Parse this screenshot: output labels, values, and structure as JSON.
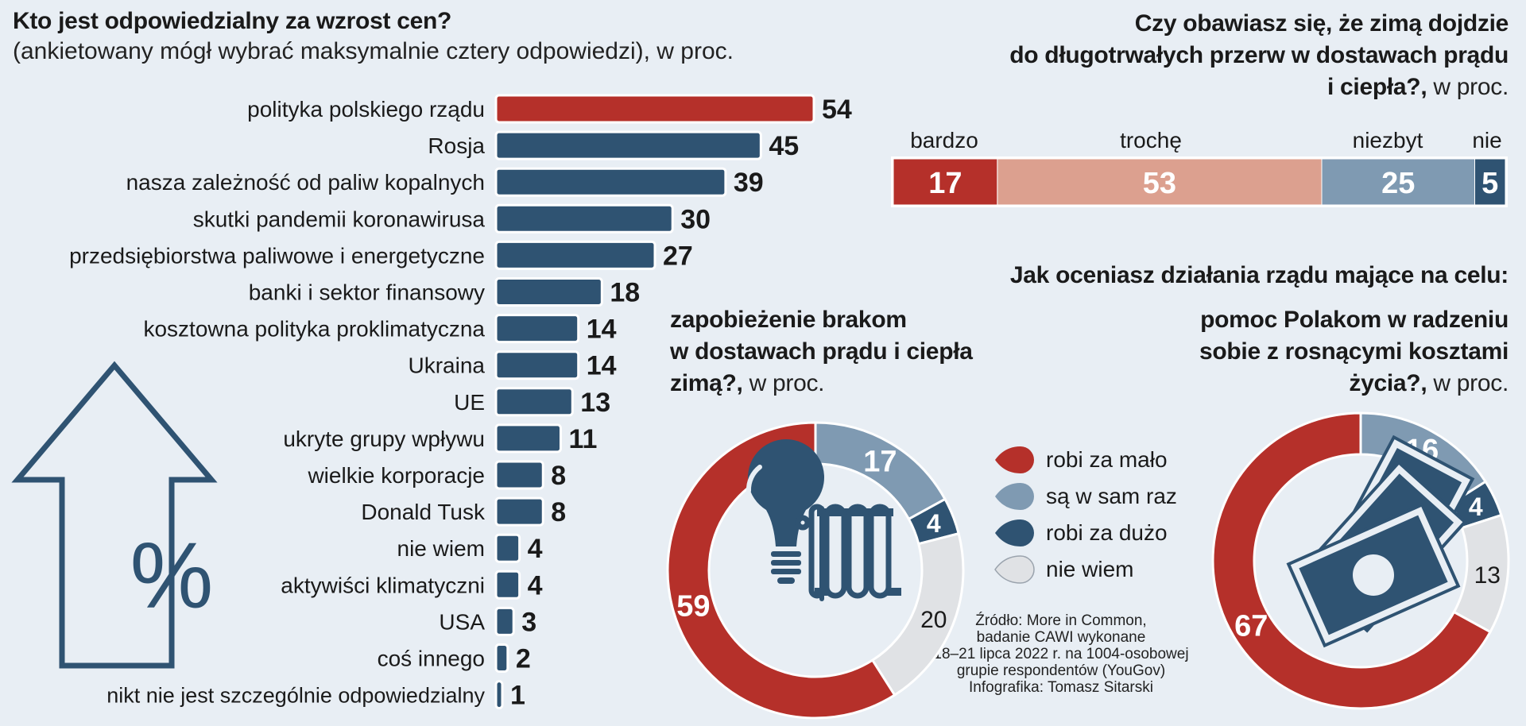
{
  "colors": {
    "red": "#b5302a",
    "navy": "#2f5372",
    "salmon": "#dca08f",
    "steel": "#7f9ab2",
    "lightgray": "#e0e2e5",
    "background": "#e8eef4",
    "outline": "#2f5372"
  },
  "left_title": {
    "main": "Kto jest odpowiedzialny za wzrost cen?",
    "sub": "(ankietowany mógł wybrać maksymalnie cztery odpowiedzi), w proc."
  },
  "top_right_title": {
    "line1": "Czy obawiasz się, że zimą dojdzie",
    "line2": "do długotrwałych przerw w dostawach prądu",
    "line3": "i ciepła?,",
    "line3_suffix": " w proc."
  },
  "middle_right_title": "Jak oceniasz działania rządu mające na celu:",
  "donut1_title": {
    "line1": "zapobieżenie brakom",
    "line2": "w dostawach prądu i ciepła",
    "line3": "zimą?,",
    "line3_suffix": " w proc."
  },
  "donut2_title": {
    "line1": "pomoc Polakom w radzeniu",
    "line2": "sobie z rosnącymi kosztami",
    "line3": "życia?,",
    "line3_suffix": " w proc."
  },
  "legend": [
    {
      "label": "robi za mało",
      "color": "#b5302a"
    },
    {
      "label": "są w sam raz",
      "color": "#7f9ab2"
    },
    {
      "label": "robi za dużo",
      "color": "#2f5372"
    },
    {
      "label": "nie wiem",
      "color": "#e0e2e5"
    }
  ],
  "source": {
    "line1": "Źródło: More in Common,",
    "line2": "badanie CAWI wykonane",
    "line3": "18–21 lipca 2022 r. na 1004-osobowej",
    "line4": "grupie respondentów (YouGov)",
    "line5": "Infografika: Tomasz Sitarski"
  },
  "icons": {
    "arrow": "up-arrow-outline-icon",
    "percent_symbol": "%",
    "bulb": "light-bulb-icon",
    "radiator": "radiator-icon",
    "banknotes": "banknotes-icon"
  },
  "chart_data": [
    {
      "type": "bar",
      "title": "Kto jest odpowiedzialny za wzrost cen?",
      "subtitle": "(ankietowany mógł wybrać maksymalnie cztery odpowiedzi), w proc.",
      "orientation": "horizontal",
      "categories": [
        "polityka polskiego rządu",
        "Rosja",
        "nasza zależność od paliw kopalnych",
        "skutki pandemii koronawirusa",
        "przedsiębiorstwa paliwowe i energetyczne",
        "banki i sektor finansowy",
        "kosztowna polityka proklimatyczna",
        "Ukraina",
        "UE",
        "ukryte grupy wpływu",
        "wielkie korporacje",
        "Donald Tusk",
        "nie wiem",
        "aktywiści klimatyczni",
        "USA",
        "coś innego",
        "nikt nie jest szczególnie odpowiedzialny"
      ],
      "values": [
        54,
        45,
        39,
        30,
        27,
        18,
        14,
        14,
        13,
        11,
        8,
        8,
        4,
        4,
        3,
        2,
        1
      ],
      "highlight_index": 0,
      "xlim": [
        0,
        54
      ]
    },
    {
      "type": "bar",
      "orientation": "stacked-horizontal",
      "title": "Czy obawiasz się, że zimą dojdzie do długotrwałych przerw w dostawach prądu i ciepła?, w proc.",
      "categories": [
        "bardzo",
        "trochę",
        "niezbyt",
        "nie"
      ],
      "values": [
        17,
        53,
        25,
        5
      ],
      "colors": [
        "#b5302a",
        "#dca08f",
        "#7f9ab2",
        "#2f5372"
      ]
    },
    {
      "type": "pie",
      "style": "donut",
      "title": "zapobieżenie brakom w dostawach prądu i ciepła zimą?, w proc.",
      "categories": [
        "robi za mało",
        "są w sam raz",
        "robi za dużo",
        "nie wiem"
      ],
      "values": [
        59,
        17,
        4,
        20
      ],
      "colors": [
        "#b5302a",
        "#7f9ab2",
        "#2f5372",
        "#e0e2e5"
      ]
    },
    {
      "type": "pie",
      "style": "donut",
      "title": "pomoc Polakom w radzeniu sobie z rosnącymi kosztami życia?, w proc.",
      "categories": [
        "robi za mało",
        "są w sam raz",
        "robi za dużo",
        "nie wiem"
      ],
      "values": [
        67,
        16,
        4,
        13
      ],
      "colors": [
        "#b5302a",
        "#7f9ab2",
        "#2f5372",
        "#e0e2e5"
      ]
    }
  ]
}
